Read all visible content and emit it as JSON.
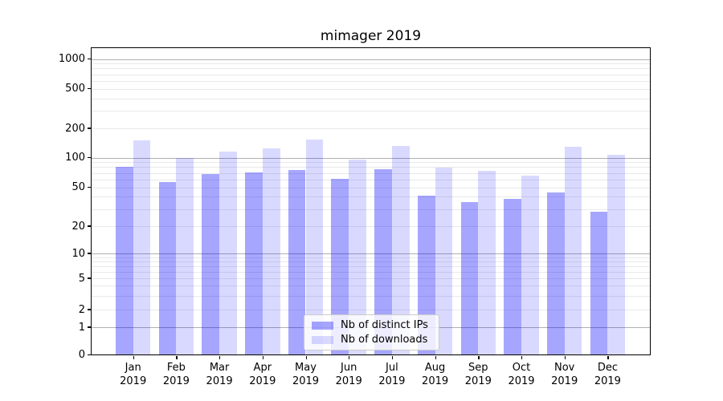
{
  "chart_data": {
    "type": "bar",
    "title": "mimager 2019",
    "categories": [
      "Jan 2019",
      "Feb 2019",
      "Mar 2019",
      "Apr 2019",
      "May 2019",
      "Jun 2019",
      "Jul 2019",
      "Aug 2019",
      "Sep 2019",
      "Oct 2019",
      "Nov 2019",
      "Dec 2019"
    ],
    "series": [
      {
        "name": "Nb of distinct IPs",
        "key": "distinct-ips",
        "color": "rgba(0,0,255,0.35)",
        "color_hex": "#a6a6ff",
        "values": [
          81,
          56,
          68,
          71,
          75,
          61,
          76,
          41,
          35,
          38,
          44,
          28
        ]
      },
      {
        "name": "Nb of downloads",
        "key": "downloads",
        "color": "rgba(0,0,255,0.15)",
        "color_hex": "#d9d9ff",
        "values": [
          150,
          100,
          115,
          124,
          153,
          96,
          132,
          79,
          73,
          66,
          129,
          107
        ]
      }
    ],
    "yscale": "log-with-zero",
    "y_ticks": [
      0,
      1,
      2,
      5,
      10,
      20,
      50,
      100,
      200,
      500,
      1000
    ],
    "ylim": [
      0,
      1300
    ],
    "grid": {
      "on": true,
      "major_color": "#b0b0b0",
      "minor_color": "#e9e9e9"
    },
    "legend_position": "lower center",
    "xlabel": "",
    "ylabel": ""
  }
}
